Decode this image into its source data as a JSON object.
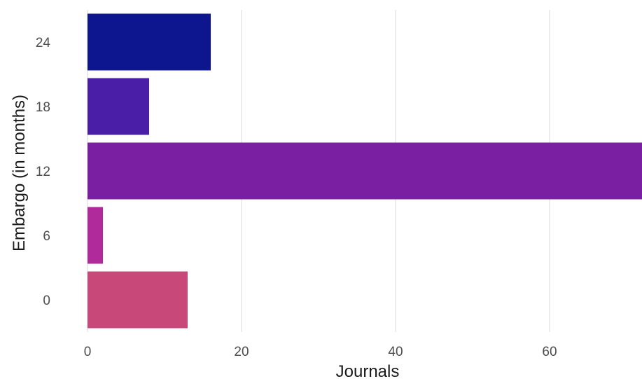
{
  "chart_data": {
    "type": "bar",
    "orientation": "horizontal",
    "categories": [
      "0",
      "6",
      "12",
      "18",
      "24"
    ],
    "values": [
      13,
      2,
      72,
      8,
      16
    ],
    "colors": [
      "#c9487a",
      "#b02a9c",
      "#7b1fa2",
      "#4a1ea6",
      "#0d168f"
    ],
    "xlabel": "Journals",
    "ylabel": "Embargo (in months)",
    "xticks": [
      "0",
      "20",
      "40",
      "60"
    ],
    "xlim": [
      0,
      72
    ],
    "grid": "vertical"
  }
}
